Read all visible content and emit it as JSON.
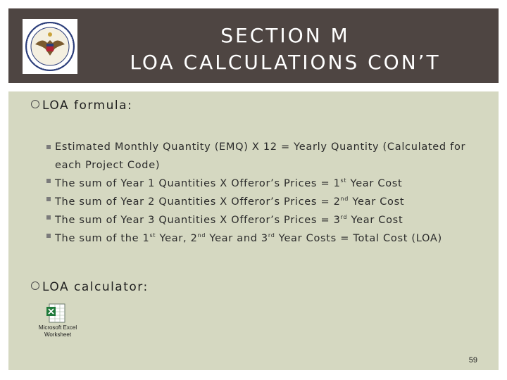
{
  "header": {
    "title_line1": "SECTION M",
    "title_line2": "LOA CALCULATIONS CON’T"
  },
  "bullets": {
    "formula_heading": "LOA formula:",
    "items": [
      "Estimated Monthly Quantity (EMQ) X 12 = Yearly Quantity (Calculated for each Project Code)",
      "The sum of Year 1 Quantities X Offeror’s Prices = 1st Year Cost",
      "The sum of Year 2 Quantities X Offeror’s Prices = 2nd Year Cost",
      "The sum of Year 3 Quantities X Offeror’s Prices = 3rd Year Cost",
      "The sum of the 1st Year, 2nd Year and 3rd Year Costs = Total Cost (LOA)"
    ],
    "calculator_heading": "LOA calculator:"
  },
  "attachment": {
    "label_line1": "Microsoft Excel",
    "label_line2": "Worksheet",
    "icon": "excel-worksheet-icon"
  },
  "footer": {
    "page_number": "59"
  },
  "colors": {
    "title_bar": "#4e4542",
    "content_bg": "#d5d8c1"
  }
}
